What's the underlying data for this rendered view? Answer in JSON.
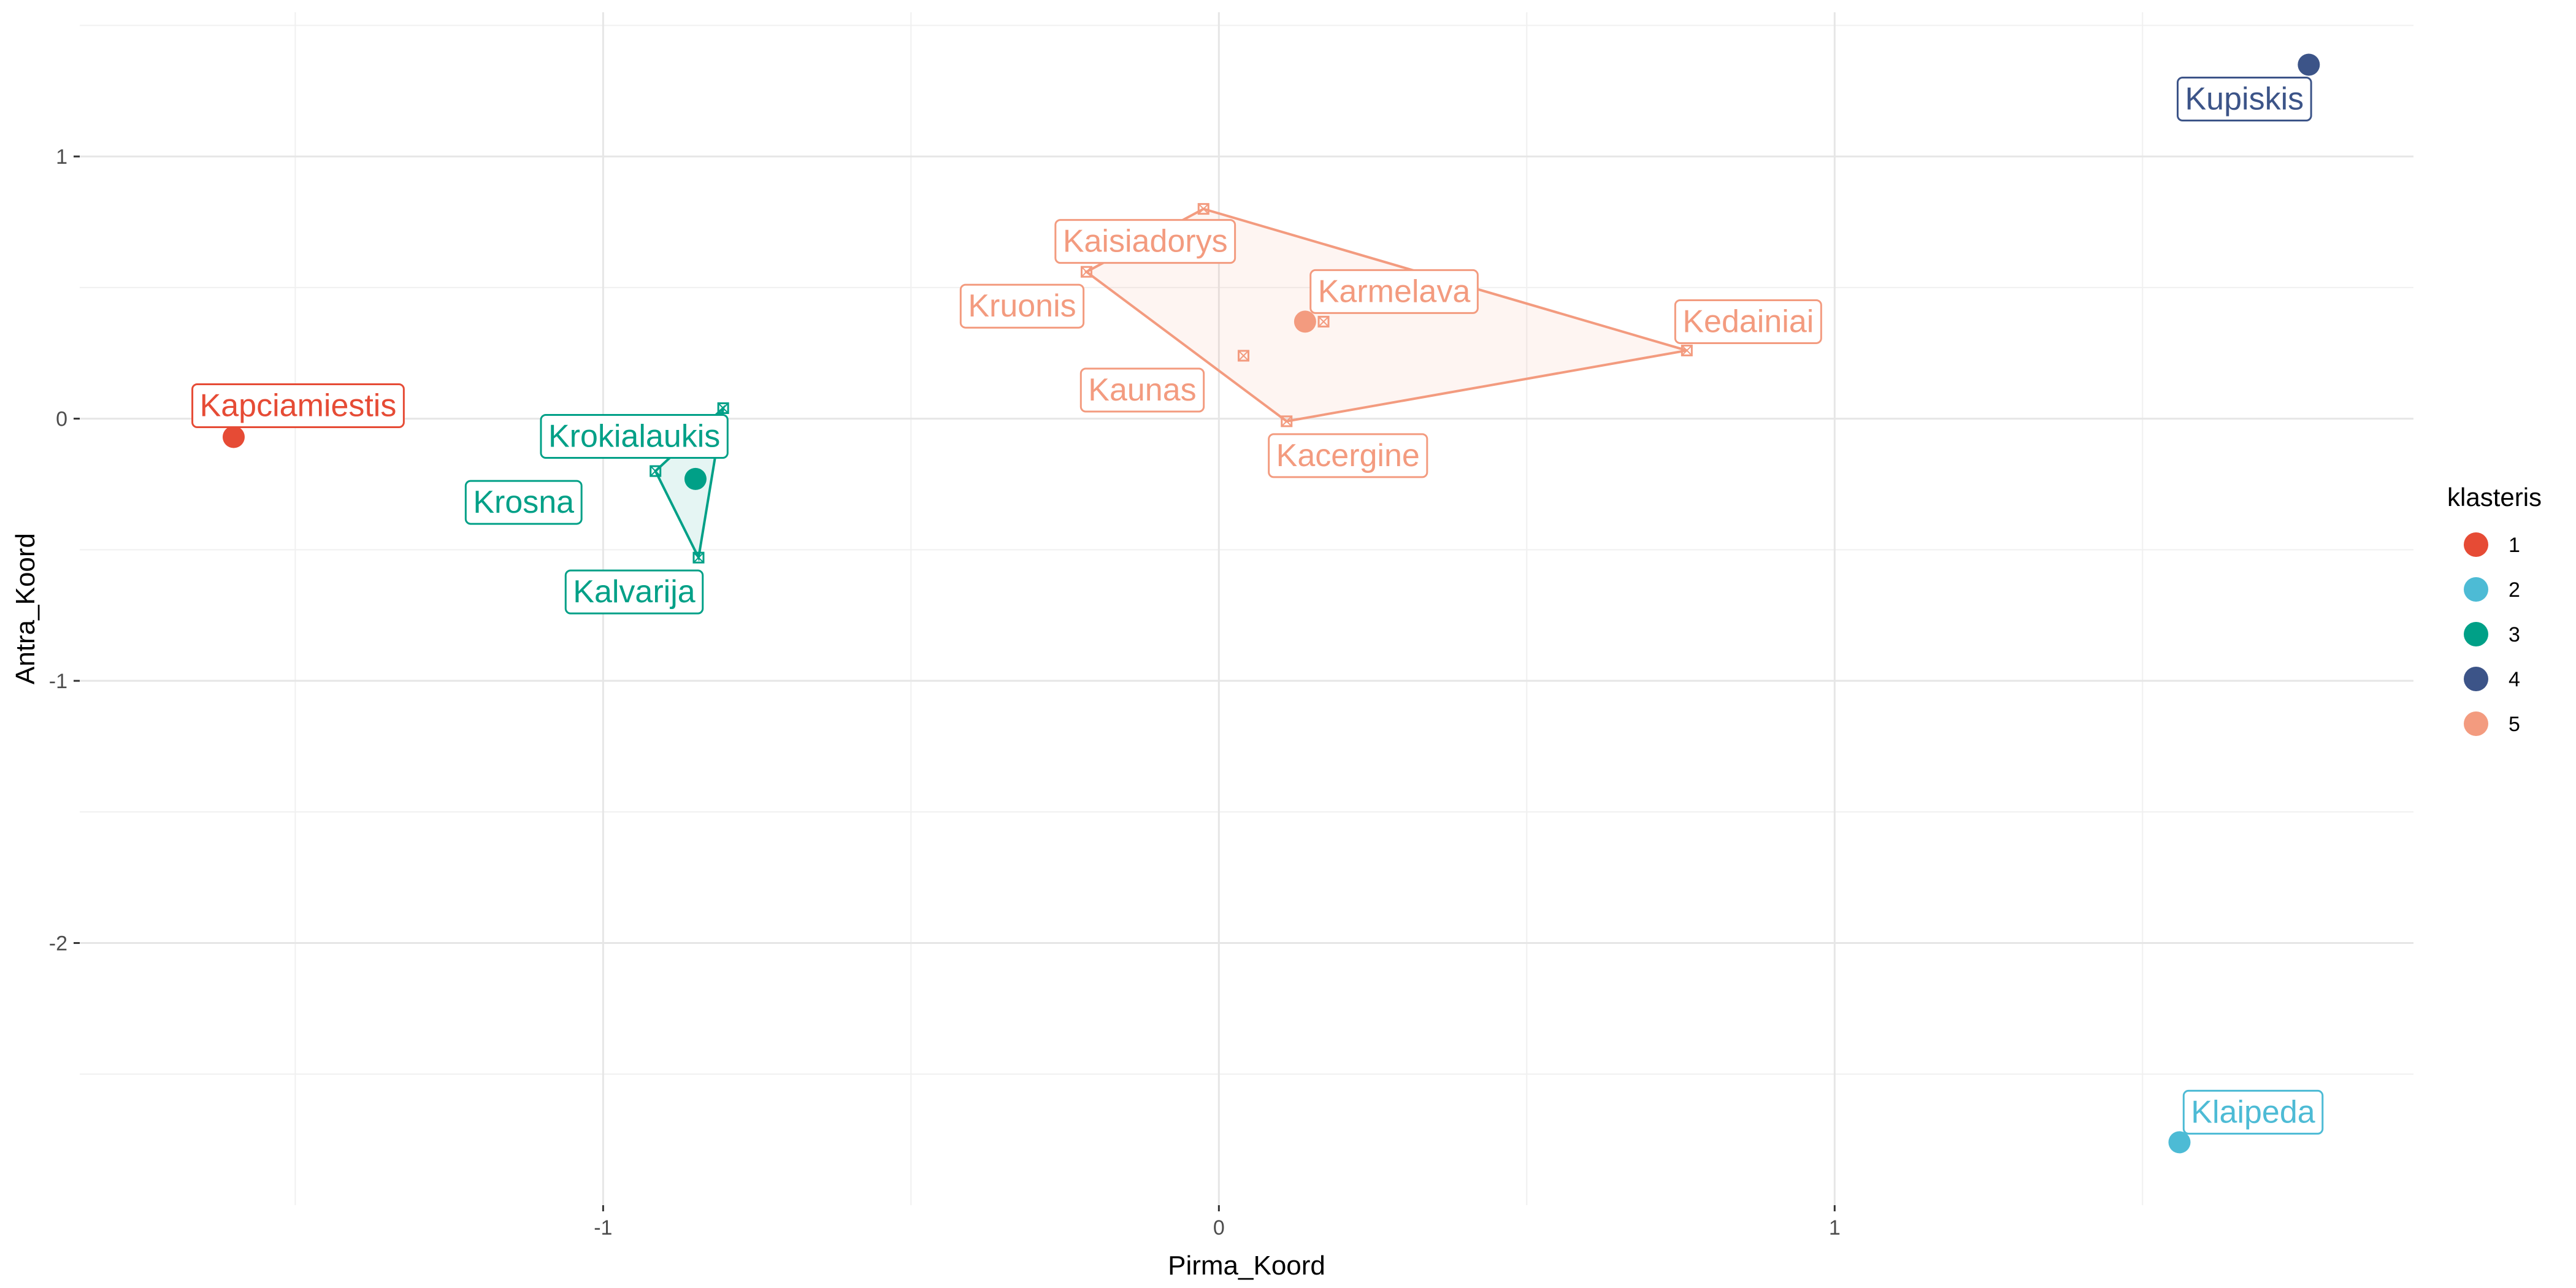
{
  "chart_data": {
    "type": "scatter",
    "xlabel": "Pirma_Koord",
    "ylabel": "Antra_Koord",
    "xlim": [
      -1.85,
      1.94
    ],
    "ylim": [
      -3.0,
      1.55
    ],
    "xticks": [
      {
        "value": -1,
        "label": "-1"
      },
      {
        "value": 0,
        "label": "0"
      },
      {
        "value": 1,
        "label": "1"
      }
    ],
    "yticks": [
      {
        "value": 1,
        "label": "1"
      },
      {
        "value": 0,
        "label": "0"
      },
      {
        "value": -1,
        "label": "-1"
      },
      {
        "value": -2,
        "label": "-2"
      }
    ],
    "grid": true,
    "legend": {
      "title": "klasteris",
      "position": "right",
      "entries": [
        {
          "label": "1",
          "color": "#E64B35"
        },
        {
          "label": "2",
          "color": "#4DBBD5"
        },
        {
          "label": "3",
          "color": "#00A087"
        },
        {
          "label": "4",
          "color": "#3C5488"
        },
        {
          "label": "5",
          "color": "#F39B7F"
        }
      ]
    },
    "clusters": [
      {
        "id": "1",
        "color": "#E64B35",
        "centroid": [
          -1.6,
          -0.07
        ],
        "points": [
          {
            "label": "Kapciamiestis",
            "x": -1.6,
            "y": -0.07
          }
        ]
      },
      {
        "id": "2",
        "color": "#4DBBD5",
        "centroid": [
          1.56,
          -2.76
        ],
        "points": [
          {
            "label": "Klaipeda",
            "x": 1.56,
            "y": -2.76
          }
        ]
      },
      {
        "id": "3",
        "color": "#00A087",
        "centroid": [
          -0.85,
          -0.23
        ],
        "points": [
          {
            "label": "Krokialaukis",
            "x": -0.805,
            "y": 0.04
          },
          {
            "label": "Krosna",
            "x": -0.915,
            "y": -0.2
          },
          {
            "label": "Kalvarija",
            "x": -0.845,
            "y": -0.53
          }
        ]
      },
      {
        "id": "4",
        "color": "#3C5488",
        "centroid": [
          1.77,
          1.35
        ],
        "points": [
          {
            "label": "Kupiskis",
            "x": 1.77,
            "y": 1.35
          }
        ]
      },
      {
        "id": "5",
        "color": "#F39B7F",
        "centroid": [
          0.14,
          0.37
        ],
        "points": [
          {
            "label": "Kaisiadorys",
            "x": -0.025,
            "y": 0.8
          },
          {
            "label": "Kruonis",
            "x": -0.215,
            "y": 0.56
          },
          {
            "label": "Karmelava",
            "x": 0.17,
            "y": 0.37
          },
          {
            "label": "Kedainiai",
            "x": 0.76,
            "y": 0.26
          },
          {
            "label": "Kaunas",
            "x": 0.04,
            "y": 0.24
          },
          {
            "label": "Kacergine",
            "x": 0.11,
            "y": -0.01
          }
        ]
      }
    ]
  }
}
